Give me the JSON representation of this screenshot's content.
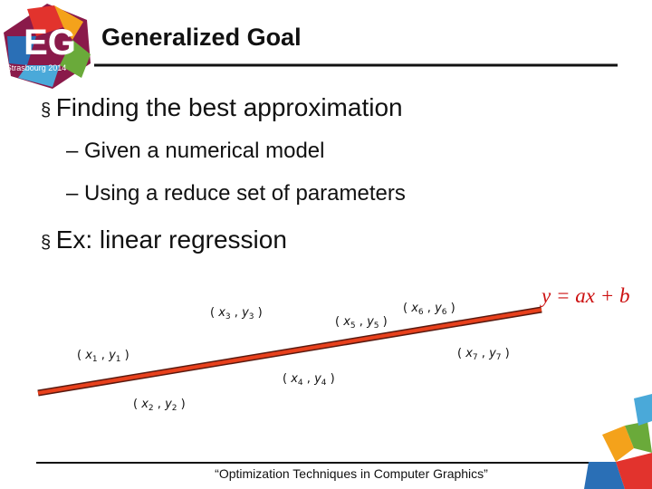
{
  "logo": {
    "mark": "EG",
    "place": "Strasbourg 2014"
  },
  "title": "Generalized Goal",
  "bullets": [
    {
      "text": "Finding the best approximation",
      "subs": [
        "Given a numerical model",
        "Using a reduce set of parameters"
      ]
    },
    {
      "text": "Ex: linear regression",
      "subs": []
    }
  ],
  "figure": {
    "var_x": "x",
    "var_y": "y",
    "points": [
      {
        "sub": "3"
      },
      {
        "sub": "5"
      },
      {
        "sub": "6"
      },
      {
        "sub": "1"
      },
      {
        "sub": "7"
      },
      {
        "sub": "4"
      },
      {
        "sub": "2"
      }
    ],
    "equation": "y = ax + b"
  },
  "footer": "“Optimization Techniques in Computer Graphics”"
}
